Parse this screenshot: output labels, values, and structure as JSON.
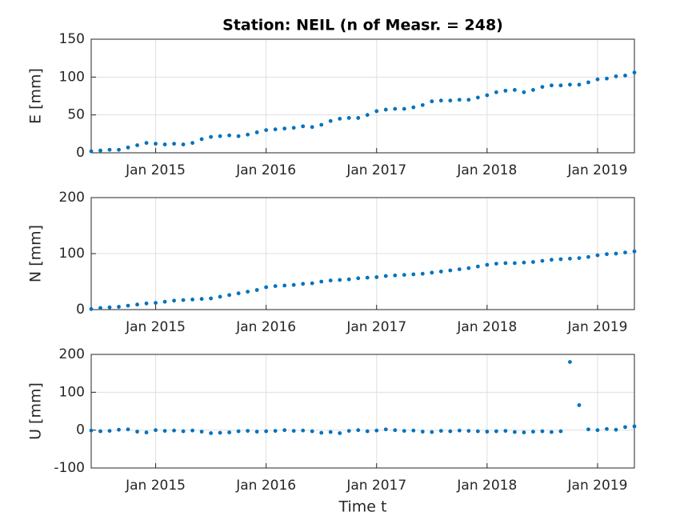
{
  "chart_data": [
    {
      "type": "scatter",
      "title": "Station: NEIL (n of Measr. = 248)",
      "ylabel": "E [mm]",
      "color": "#0072bd",
      "grid": true,
      "xlim": [
        "2014-06",
        "2019-05"
      ],
      "xticks": [
        {
          "value": "2015-01",
          "label": "Jan 2015"
        },
        {
          "value": "2016-01",
          "label": "Jan 2016"
        },
        {
          "value": "2017-01",
          "label": "Jan 2017"
        },
        {
          "value": "2018-01",
          "label": "Jan 2018"
        },
        {
          "value": "2019-01",
          "label": "Jan 2019"
        }
      ],
      "ylim": [
        0,
        150
      ],
      "yticks": [
        0,
        50,
        100,
        150
      ],
      "x": [
        "2014-06",
        "2014-07",
        "2014-08",
        "2014-09",
        "2014-10",
        "2014-11",
        "2014-12",
        "2015-01",
        "2015-02",
        "2015-03",
        "2015-04",
        "2015-05",
        "2015-06",
        "2015-07",
        "2015-08",
        "2015-09",
        "2015-10",
        "2015-11",
        "2015-12",
        "2016-01",
        "2016-02",
        "2016-03",
        "2016-04",
        "2016-05",
        "2016-06",
        "2016-07",
        "2016-08",
        "2016-09",
        "2016-10",
        "2016-11",
        "2016-12",
        "2017-01",
        "2017-02",
        "2017-03",
        "2017-04",
        "2017-05",
        "2017-06",
        "2017-07",
        "2017-08",
        "2017-09",
        "2017-10",
        "2017-11",
        "2017-12",
        "2018-01",
        "2018-02",
        "2018-03",
        "2018-04",
        "2018-05",
        "2018-06",
        "2018-07",
        "2018-08",
        "2018-09",
        "2018-10",
        "2018-11",
        "2018-12",
        "2019-01",
        "2019-02",
        "2019-03",
        "2019-04",
        "2019-05"
      ],
      "values": [
        2,
        3,
        4,
        4,
        7,
        10,
        13,
        12,
        11,
        12,
        11,
        13,
        18,
        21,
        22,
        23,
        22,
        24,
        27,
        30,
        31,
        32,
        33,
        35,
        34,
        37,
        42,
        45,
        46,
        46,
        50,
        55,
        57,
        58,
        58,
        60,
        63,
        68,
        69,
        69,
        70,
        70,
        73,
        76,
        80,
        82,
        83,
        80,
        83,
        87,
        89,
        89,
        90,
        90,
        93,
        97,
        98,
        101,
        102,
        106
      ]
    },
    {
      "type": "scatter",
      "ylabel": "N [mm]",
      "color": "#0072bd",
      "grid": true,
      "xlim": [
        "2014-06",
        "2019-05"
      ],
      "xticks": [
        {
          "value": "2015-01",
          "label": "Jan 2015"
        },
        {
          "value": "2016-01",
          "label": "Jan 2016"
        },
        {
          "value": "2017-01",
          "label": "Jan 2017"
        },
        {
          "value": "2018-01",
          "label": "Jan 2018"
        },
        {
          "value": "2019-01",
          "label": "Jan 2019"
        }
      ],
      "ylim": [
        0,
        200
      ],
      "yticks": [
        0,
        100,
        200
      ],
      "x": [
        "2014-06",
        "2014-07",
        "2014-08",
        "2014-09",
        "2014-10",
        "2014-11",
        "2014-12",
        "2015-01",
        "2015-02",
        "2015-03",
        "2015-04",
        "2015-05",
        "2015-06",
        "2015-07",
        "2015-08",
        "2015-09",
        "2015-10",
        "2015-11",
        "2015-12",
        "2016-01",
        "2016-02",
        "2016-03",
        "2016-04",
        "2016-05",
        "2016-06",
        "2016-07",
        "2016-08",
        "2016-09",
        "2016-10",
        "2016-11",
        "2016-12",
        "2017-01",
        "2017-02",
        "2017-03",
        "2017-04",
        "2017-05",
        "2017-06",
        "2017-07",
        "2017-08",
        "2017-09",
        "2017-10",
        "2017-11",
        "2017-12",
        "2018-01",
        "2018-02",
        "2018-03",
        "2018-04",
        "2018-05",
        "2018-06",
        "2018-07",
        "2018-08",
        "2018-09",
        "2018-10",
        "2018-11",
        "2018-12",
        "2019-01",
        "2019-02",
        "2019-03",
        "2019-04",
        "2019-05"
      ],
      "values": [
        1,
        3,
        4,
        5,
        7,
        9,
        11,
        12,
        14,
        16,
        17,
        18,
        19,
        20,
        23,
        26,
        29,
        32,
        35,
        40,
        42,
        43,
        44,
        46,
        47,
        50,
        52,
        53,
        54,
        56,
        57,
        58,
        60,
        61,
        62,
        63,
        64,
        66,
        68,
        70,
        72,
        74,
        77,
        80,
        82,
        83,
        83,
        84,
        85,
        87,
        89,
        90,
        91,
        92,
        94,
        97,
        99,
        100,
        102,
        104
      ]
    },
    {
      "type": "scatter",
      "ylabel": "U [mm]",
      "xlabel": "Time t",
      "color": "#0072bd",
      "grid": true,
      "xlim": [
        "2014-06",
        "2019-05"
      ],
      "xticks": [
        {
          "value": "2015-01",
          "label": "Jan 2015"
        },
        {
          "value": "2016-01",
          "label": "Jan 2016"
        },
        {
          "value": "2017-01",
          "label": "Jan 2017"
        },
        {
          "value": "2018-01",
          "label": "Jan 2018"
        },
        {
          "value": "2019-01",
          "label": "Jan 2019"
        }
      ],
      "ylim": [
        -100,
        200
      ],
      "yticks": [
        -100,
        0,
        100,
        200
      ],
      "x": [
        "2014-06",
        "2014-07",
        "2014-08",
        "2014-09",
        "2014-10",
        "2014-11",
        "2014-12",
        "2015-01",
        "2015-02",
        "2015-03",
        "2015-04",
        "2015-05",
        "2015-06",
        "2015-07",
        "2015-08",
        "2015-09",
        "2015-10",
        "2015-11",
        "2015-12",
        "2016-01",
        "2016-02",
        "2016-03",
        "2016-04",
        "2016-05",
        "2016-06",
        "2016-07",
        "2016-08",
        "2016-09",
        "2016-10",
        "2016-11",
        "2016-12",
        "2017-01",
        "2017-02",
        "2017-03",
        "2017-04",
        "2017-05",
        "2017-06",
        "2017-07",
        "2017-08",
        "2017-09",
        "2017-10",
        "2017-11",
        "2017-12",
        "2018-01",
        "2018-02",
        "2018-03",
        "2018-04",
        "2018-05",
        "2018-06",
        "2018-07",
        "2018-08",
        "2018-09",
        "2018-10",
        "2018-11",
        "2018-12",
        "2019-01",
        "2019-02",
        "2019-03",
        "2019-04",
        "2019-05"
      ],
      "values": [
        -1,
        -3,
        -2,
        1,
        2,
        -4,
        -6,
        0,
        -2,
        -1,
        -3,
        -1,
        -4,
        -8,
        -7,
        -6,
        -3,
        -2,
        -4,
        -3,
        -2,
        0,
        -2,
        -1,
        -3,
        -7,
        -5,
        -8,
        -2,
        0,
        -3,
        -1,
        2,
        0,
        -2,
        -1,
        -4,
        -5,
        -2,
        -3,
        -1,
        -2,
        -3,
        -4,
        -3,
        -2,
        -5,
        -6,
        -4,
        -3,
        -5,
        -3,
        180,
        66,
        2,
        0,
        3,
        1,
        8,
        10
      ]
    }
  ]
}
